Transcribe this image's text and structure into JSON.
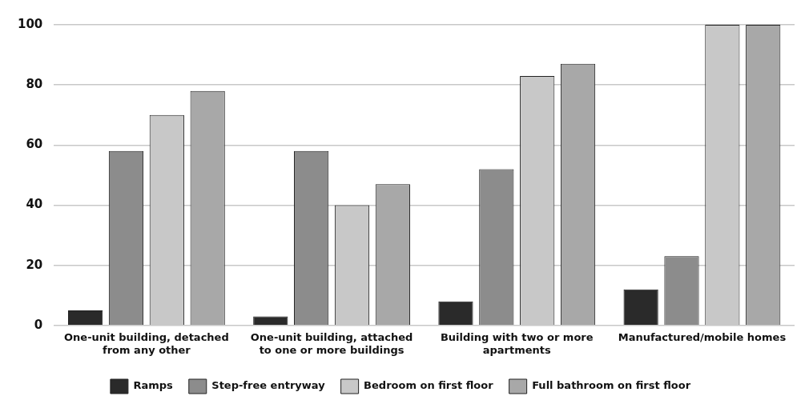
{
  "chart_data": {
    "type": "bar",
    "categories": [
      "One-unit building, detached from any other",
      "One-unit building, attached to one or more buildings",
      "Building with two or more apartments",
      "Manufactured/mobile homes"
    ],
    "series": [
      {
        "name": "Ramps",
        "color": "#2a2a2a",
        "values": [
          5,
          3,
          8,
          12
        ]
      },
      {
        "name": "Step-free entryway",
        "color": "#8c8c8c",
        "values": [
          58,
          58,
          52,
          23
        ]
      },
      {
        "name": "Bedroom on first floor",
        "color": "#c8c8c8",
        "values": [
          70,
          40,
          83,
          100
        ]
      },
      {
        "name": "Full bathroom on first floor",
        "color": "#a8a8a8",
        "values": [
          78,
          47,
          87,
          100
        ]
      }
    ],
    "ylim": [
      0,
      100
    ],
    "yticks": [
      0,
      20,
      40,
      60,
      80,
      100
    ],
    "grid": "y",
    "legend": "bottom"
  }
}
